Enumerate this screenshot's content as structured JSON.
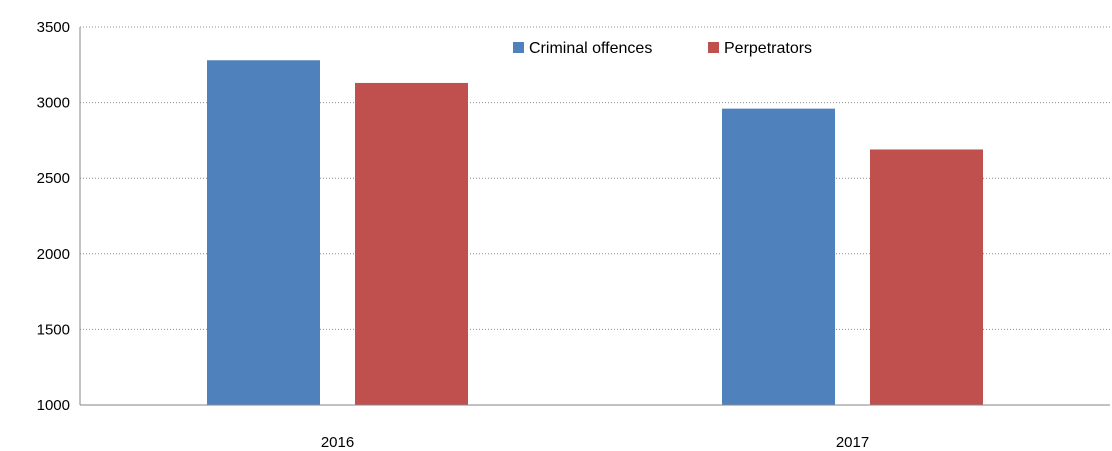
{
  "chart_data": {
    "type": "bar",
    "categories": [
      "2016",
      "2017"
    ],
    "series": [
      {
        "name": "Criminal offences",
        "values": [
          3280,
          2960
        ],
        "color": "#4F81BD"
      },
      {
        "name": "Perpetrators",
        "values": [
          3130,
          2690
        ],
        "color": "#C0504D"
      }
    ],
    "ylim": [
      1000,
      3500
    ],
    "yticks": [
      1000,
      1500,
      2000,
      2500,
      3000,
      3500
    ],
    "grid": true,
    "grid_style": "dotted",
    "legend_position": "top-center",
    "title": "",
    "xlabel": "",
    "ylabel": ""
  }
}
